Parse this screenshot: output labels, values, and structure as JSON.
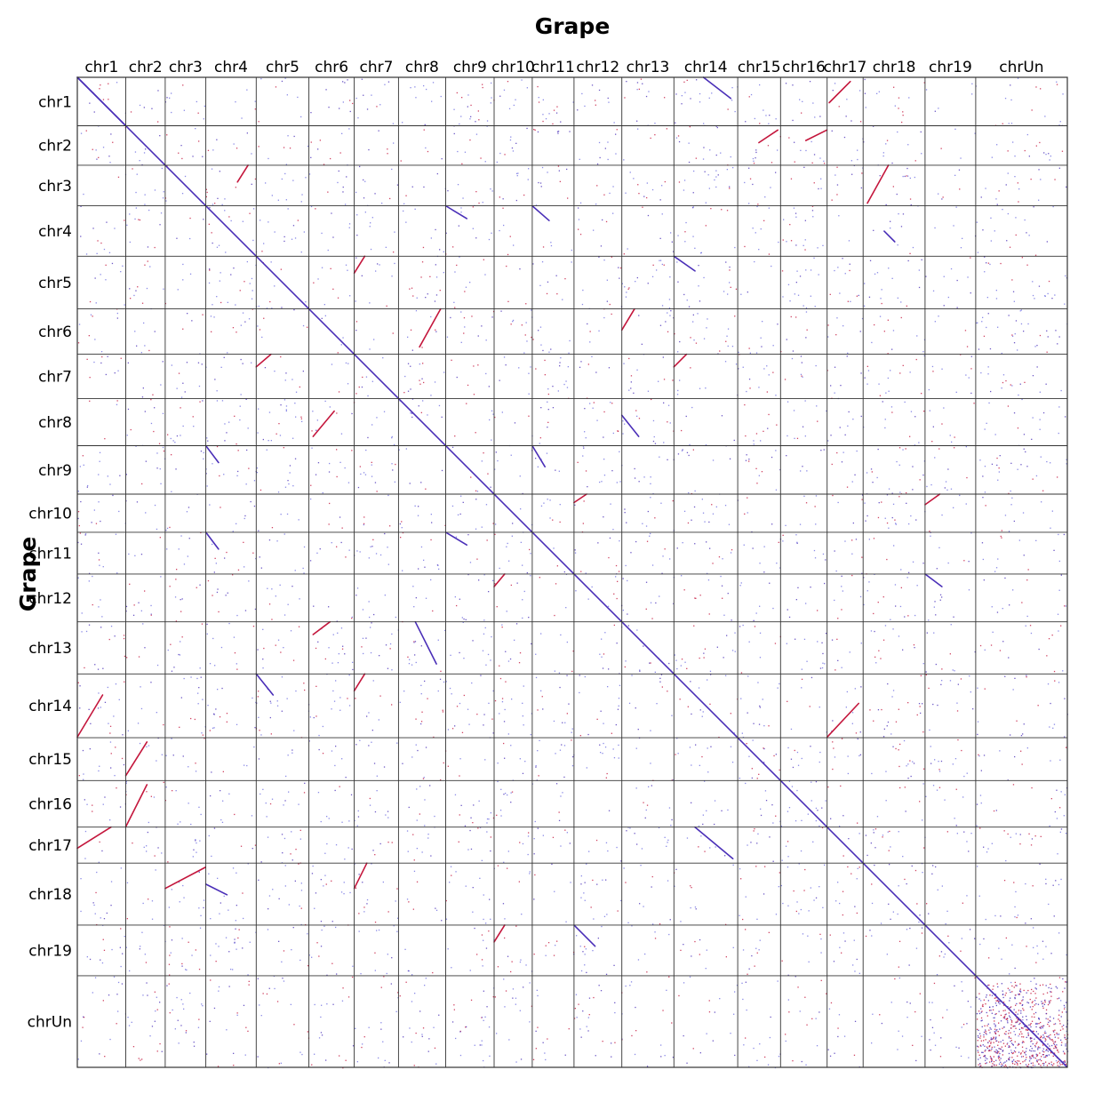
{
  "chart_data": {
    "type": "scatter",
    "title": "Grape",
    "xlabel": "",
    "ylabel": "Grape",
    "chromosomes": [
      {
        "name": "chr1",
        "size": 23.0
      },
      {
        "name": "chr2",
        "size": 18.7
      },
      {
        "name": "chr3",
        "size": 19.3
      },
      {
        "name": "chr4",
        "size": 23.9
      },
      {
        "name": "chr5",
        "size": 25.0
      },
      {
        "name": "chr6",
        "size": 21.5
      },
      {
        "name": "chr7",
        "size": 21.0
      },
      {
        "name": "chr8",
        "size": 22.4
      },
      {
        "name": "chr9",
        "size": 23.0
      },
      {
        "name": "chr10",
        "size": 18.1
      },
      {
        "name": "chr11",
        "size": 19.8
      },
      {
        "name": "chr12",
        "size": 22.7
      },
      {
        "name": "chr13",
        "size": 24.7
      },
      {
        "name": "chr14",
        "size": 30.3
      },
      {
        "name": "chr15",
        "size": 20.3
      },
      {
        "name": "chr16",
        "size": 22.1
      },
      {
        "name": "chr17",
        "size": 17.1
      },
      {
        "name": "chr18",
        "size": 29.4
      },
      {
        "name": "chr19",
        "size": 24.0
      },
      {
        "name": "chrUn",
        "size": 43.5
      }
    ],
    "colors": {
      "dense": "#4a2fb8",
      "sparse": "#6d6de0",
      "inverted": "#c4163c",
      "grid": "#333333"
    },
    "grid": true,
    "synteny_blocks": [
      {
        "x_chr": "chr1",
        "y_chr": "chr1",
        "x": [
          0,
          23
        ],
        "y": [
          0,
          23
        ],
        "strand": "+"
      },
      {
        "x_chr": "chr14",
        "y_chr": "chr1",
        "x": [
          14,
          27
        ],
        "y": [
          0,
          10
        ],
        "strand": "+"
      },
      {
        "x_chr": "chr17",
        "y_chr": "chr1",
        "x": [
          1,
          11
        ],
        "y": [
          2,
          12
        ],
        "strand": "-"
      },
      {
        "x_chr": "chr15",
        "y_chr": "chr2",
        "x": [
          10,
          19
        ],
        "y": [
          2,
          8
        ],
        "strand": "-"
      },
      {
        "x_chr": "chr16",
        "y_chr": "chr2",
        "x": [
          12,
          22
        ],
        "y": [
          2,
          7
        ],
        "strand": "-"
      },
      {
        "x_chr": "chr4",
        "y_chr": "chr3",
        "x": [
          15,
          20
        ],
        "y": [
          0,
          8
        ],
        "strand": "-"
      },
      {
        "x_chr": "chr18",
        "y_chr": "chr3",
        "x": [
          2,
          12
        ],
        "y": [
          0,
          18
        ],
        "strand": "-"
      },
      {
        "x_chr": "chr9",
        "y_chr": "chr4",
        "x": [
          0,
          10
        ],
        "y": [
          0,
          6
        ],
        "strand": "+"
      },
      {
        "x_chr": "chr11",
        "y_chr": "chr4",
        "x": [
          0,
          8
        ],
        "y": [
          0,
          7
        ],
        "strand": "+"
      },
      {
        "x_chr": "chr18",
        "y_chr": "chr4",
        "x": [
          10,
          15
        ],
        "y": [
          12,
          17
        ],
        "strand": "+"
      },
      {
        "x_chr": "chr7",
        "y_chr": "chr5",
        "x": [
          0,
          5
        ],
        "y": [
          0,
          8
        ],
        "strand": "-"
      },
      {
        "x_chr": "chr14",
        "y_chr": "chr5",
        "x": [
          0,
          10
        ],
        "y": [
          0,
          7
        ],
        "strand": "+"
      },
      {
        "x_chr": "chr8",
        "y_chr": "chr6",
        "x": [
          10,
          20
        ],
        "y": [
          0,
          18
        ],
        "strand": "-"
      },
      {
        "x_chr": "chr13",
        "y_chr": "chr6",
        "x": [
          0,
          6
        ],
        "y": [
          0,
          10
        ],
        "strand": "-"
      },
      {
        "x_chr": "chr5",
        "y_chr": "chr7",
        "x": [
          0,
          7
        ],
        "y": [
          0,
          6
        ],
        "strand": "-"
      },
      {
        "x_chr": "chr14",
        "y_chr": "chr7",
        "x": [
          0,
          6
        ],
        "y": [
          0,
          6
        ],
        "strand": "-"
      },
      {
        "x_chr": "chr6",
        "y_chr": "chr8",
        "x": [
          2,
          12
        ],
        "y": [
          6,
          18
        ],
        "strand": "-"
      },
      {
        "x_chr": "chr13",
        "y_chr": "chr8",
        "x": [
          0,
          8
        ],
        "y": [
          8,
          18
        ],
        "strand": "+"
      },
      {
        "x_chr": "chr4",
        "y_chr": "chr9",
        "x": [
          0,
          6
        ],
        "y": [
          0,
          8
        ],
        "strand": "+"
      },
      {
        "x_chr": "chr11",
        "y_chr": "chr9",
        "x": [
          0,
          6
        ],
        "y": [
          0,
          10
        ],
        "strand": "+"
      },
      {
        "x_chr": "chr12",
        "y_chr": "chr10",
        "x": [
          0,
          6
        ],
        "y": [
          0,
          4
        ],
        "strand": "-"
      },
      {
        "x_chr": "chr19",
        "y_chr": "chr10",
        "x": [
          0,
          7
        ],
        "y": [
          0,
          5
        ],
        "strand": "-"
      },
      {
        "x_chr": "chr4",
        "y_chr": "chr11",
        "x": [
          0,
          6
        ],
        "y": [
          0,
          8
        ],
        "strand": "+"
      },
      {
        "x_chr": "chr9",
        "y_chr": "chr11",
        "x": [
          0,
          10
        ],
        "y": [
          0,
          6
        ],
        "strand": "+"
      },
      {
        "x_chr": "chr10",
        "y_chr": "chr12",
        "x": [
          0,
          5
        ],
        "y": [
          0,
          6
        ],
        "strand": "-"
      },
      {
        "x_chr": "chr19",
        "y_chr": "chr12",
        "x": [
          0,
          8
        ],
        "y": [
          0,
          6
        ],
        "strand": "+"
      },
      {
        "x_chr": "chr6",
        "y_chr": "chr13",
        "x": [
          2,
          10
        ],
        "y": [
          0,
          6
        ],
        "strand": "-"
      },
      {
        "x_chr": "chr8",
        "y_chr": "chr13",
        "x": [
          8,
          18
        ],
        "y": [
          0,
          20
        ],
        "strand": "+"
      },
      {
        "x_chr": "chr1",
        "y_chr": "chr14",
        "x": [
          0,
          12
        ],
        "y": [
          10,
          30
        ],
        "strand": "-"
      },
      {
        "x_chr": "chr5",
        "y_chr": "chr14",
        "x": [
          0,
          8
        ],
        "y": [
          0,
          10
        ],
        "strand": "+"
      },
      {
        "x_chr": "chr7",
        "y_chr": "chr14",
        "x": [
          0,
          5
        ],
        "y": [
          0,
          8
        ],
        "strand": "-"
      },
      {
        "x_chr": "chr17",
        "y_chr": "chr14",
        "x": [
          0,
          15
        ],
        "y": [
          14,
          30
        ],
        "strand": "-"
      },
      {
        "x_chr": "chr2",
        "y_chr": "chr15",
        "x": [
          0,
          10
        ],
        "y": [
          2,
          18
        ],
        "strand": "-"
      },
      {
        "x_chr": "chr2",
        "y_chr": "chr16",
        "x": [
          0,
          10
        ],
        "y": [
          2,
          22
        ],
        "strand": "-"
      },
      {
        "x_chr": "chr1",
        "y_chr": "chr17",
        "x": [
          0,
          16
        ],
        "y": [
          0,
          10
        ],
        "strand": "-"
      },
      {
        "x_chr": "chr14",
        "y_chr": "chr17",
        "x": [
          10,
          28
        ],
        "y": [
          0,
          15
        ],
        "strand": "+"
      },
      {
        "x_chr": "chr3",
        "y_chr": "chr18",
        "x": [
          0,
          19
        ],
        "y": [
          2,
          12
        ],
        "strand": "-"
      },
      {
        "x_chr": "chr4",
        "y_chr": "chr18",
        "x": [
          0,
          10
        ],
        "y": [
          10,
          15
        ],
        "strand": "+"
      },
      {
        "x_chr": "chr7",
        "y_chr": "chr18",
        "x": [
          0,
          6
        ],
        "y": [
          0,
          12
        ],
        "strand": "-"
      },
      {
        "x_chr": "chr10",
        "y_chr": "chr19",
        "x": [
          0,
          5
        ],
        "y": [
          0,
          8
        ],
        "strand": "-"
      },
      {
        "x_chr": "chr12",
        "y_chr": "chr19",
        "x": [
          0,
          10
        ],
        "y": [
          0,
          10
        ],
        "strand": "+"
      }
    ]
  }
}
